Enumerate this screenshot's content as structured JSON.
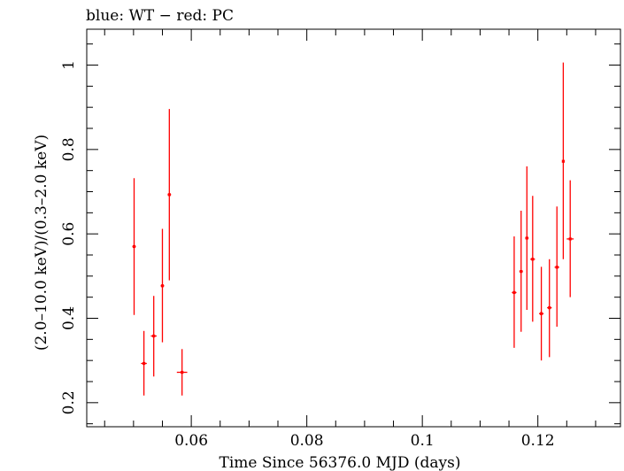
{
  "chart_data": {
    "type": "scatter",
    "title": "blue: WT − red: PC",
    "xlabel": "Time Since 56376.0 MJD (days)",
    "ylabel": "(2.0–10.0 keV)/(0.3–2.0 keV)",
    "xlim": [
      0.0419,
      0.1343
    ],
    "ylim": [
      0.143,
      1.085
    ],
    "x_ticks": [
      {
        "value": 0.06,
        "label": "0.06"
      },
      {
        "value": 0.08,
        "label": "0.08"
      },
      {
        "value": 0.1,
        "label": "0.1"
      },
      {
        "value": 0.12,
        "label": "0.12"
      }
    ],
    "y_ticks": [
      {
        "value": 0.2,
        "label": "0.2"
      },
      {
        "value": 0.4,
        "label": "0.4"
      },
      {
        "value": 0.6,
        "label": "0.6"
      },
      {
        "value": 0.8,
        "label": "0.8"
      },
      {
        "value": 1.0,
        "label": "1"
      }
    ],
    "series": [
      {
        "name": "PC",
        "color": "#ff0000",
        "points": [
          {
            "x": 0.0501,
            "xerr": 0.0003,
            "y": 0.57,
            "ylo": 0.408,
            "yhi": 0.732
          },
          {
            "x": 0.0518,
            "xerr": 0.0005,
            "y": 0.293,
            "ylo": 0.217,
            "yhi": 0.37
          },
          {
            "x": 0.0535,
            "xerr": 0.0005,
            "y": 0.358,
            "ylo": 0.262,
            "yhi": 0.453
          },
          {
            "x": 0.055,
            "xerr": 0.0003,
            "y": 0.477,
            "ylo": 0.343,
            "yhi": 0.612
          },
          {
            "x": 0.0562,
            "xerr": 0.0003,
            "y": 0.693,
            "ylo": 0.49,
            "yhi": 0.896
          },
          {
            "x": 0.0584,
            "xerr": 0.0009,
            "y": 0.272,
            "ylo": 0.217,
            "yhi": 0.327
          },
          {
            "x": 0.1159,
            "xerr": 0.0004,
            "y": 0.461,
            "ylo": 0.33,
            "yhi": 0.594
          },
          {
            "x": 0.1171,
            "xerr": 0.0003,
            "y": 0.511,
            "ylo": 0.368,
            "yhi": 0.655
          },
          {
            "x": 0.1181,
            "xerr": 0.0003,
            "y": 0.59,
            "ylo": 0.42,
            "yhi": 0.76
          },
          {
            "x": 0.1191,
            "xerr": 0.0004,
            "y": 0.54,
            "ylo": 0.392,
            "yhi": 0.69
          },
          {
            "x": 0.1206,
            "xerr": 0.0004,
            "y": 0.411,
            "ylo": 0.3,
            "yhi": 0.522
          },
          {
            "x": 0.122,
            "xerr": 0.0004,
            "y": 0.425,
            "ylo": 0.308,
            "yhi": 0.54
          },
          {
            "x": 0.1233,
            "xerr": 0.0004,
            "y": 0.521,
            "ylo": 0.38,
            "yhi": 0.665
          },
          {
            "x": 0.1244,
            "xerr": 0.0002,
            "y": 0.772,
            "ylo": 0.54,
            "yhi": 1.006
          },
          {
            "x": 0.1256,
            "xerr": 0.0006,
            "y": 0.588,
            "ylo": 0.45,
            "yhi": 0.727
          }
        ]
      }
    ]
  }
}
